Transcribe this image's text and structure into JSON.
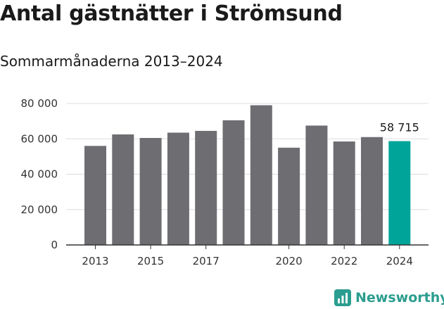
{
  "header": {
    "title": "Antal gästnätter i Strömsund",
    "subtitle": "Sommarmånaderna 2013–2024"
  },
  "brand": {
    "name": "Newsworthy"
  },
  "colors": {
    "bar": "#6e6d72",
    "highlight": "#00a499",
    "grid": "#dddddd",
    "axis": "#333333",
    "brand": "#2a9d8f"
  },
  "chart_data": {
    "type": "bar",
    "categories": [
      "2013",
      "2014",
      "2015",
      "2016",
      "2017",
      "2018",
      "2019",
      "2020",
      "2021",
      "2022",
      "2023",
      "2024"
    ],
    "x_tick_labels": [
      "2013",
      "",
      "2015",
      "",
      "2017",
      "",
      "",
      "2020",
      "",
      "2022",
      "",
      "2024"
    ],
    "values": [
      56000,
      62500,
      60500,
      63500,
      64500,
      70500,
      79000,
      55000,
      67500,
      58500,
      61000,
      58715
    ],
    "highlight_index": 11,
    "highlight_label": "58 715",
    "y_ticks": [
      0,
      20000,
      40000,
      60000,
      80000
    ],
    "y_tick_labels": [
      "0",
      "20 000",
      "40 000",
      "60 000",
      "80 000"
    ],
    "ylim": [
      0,
      80000
    ],
    "grid": true,
    "legend": "none"
  }
}
